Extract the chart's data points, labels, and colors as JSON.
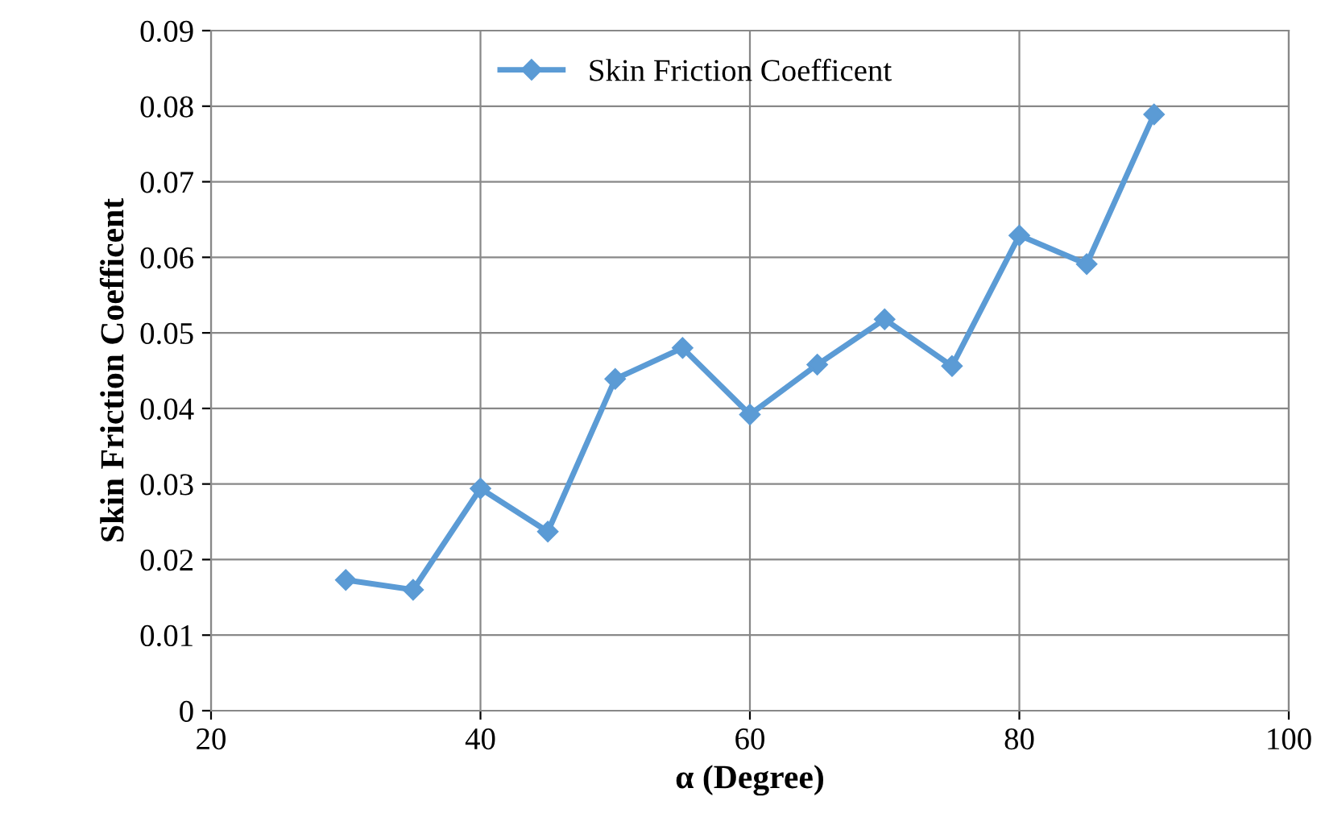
{
  "chart_data": {
    "type": "line",
    "xlabel": "α (Degree)",
    "ylabel": "Skin Friction Coefficent",
    "x": [
      30,
      35,
      40,
      45,
      50,
      55,
      60,
      65,
      70,
      75,
      80,
      85,
      90
    ],
    "series": [
      {
        "name": "Skin Friction Coefficent",
        "color": "#5b9bd5",
        "values": [
          0.0173,
          0.016,
          0.0294,
          0.0237,
          0.0439,
          0.048,
          0.0392,
          0.0458,
          0.0518,
          0.0456,
          0.0629,
          0.0591,
          0.0789
        ]
      }
    ],
    "xlim": [
      20,
      100
    ],
    "xticks": [
      20,
      40,
      60,
      80,
      100
    ],
    "ylim": [
      0,
      0.09
    ],
    "yticks": [
      0,
      0.01,
      0.02,
      0.03,
      0.04,
      0.05,
      0.06,
      0.07,
      0.08,
      0.09
    ],
    "grid": true,
    "legend": "top",
    "marker": "diamond",
    "line_style": "solid"
  }
}
